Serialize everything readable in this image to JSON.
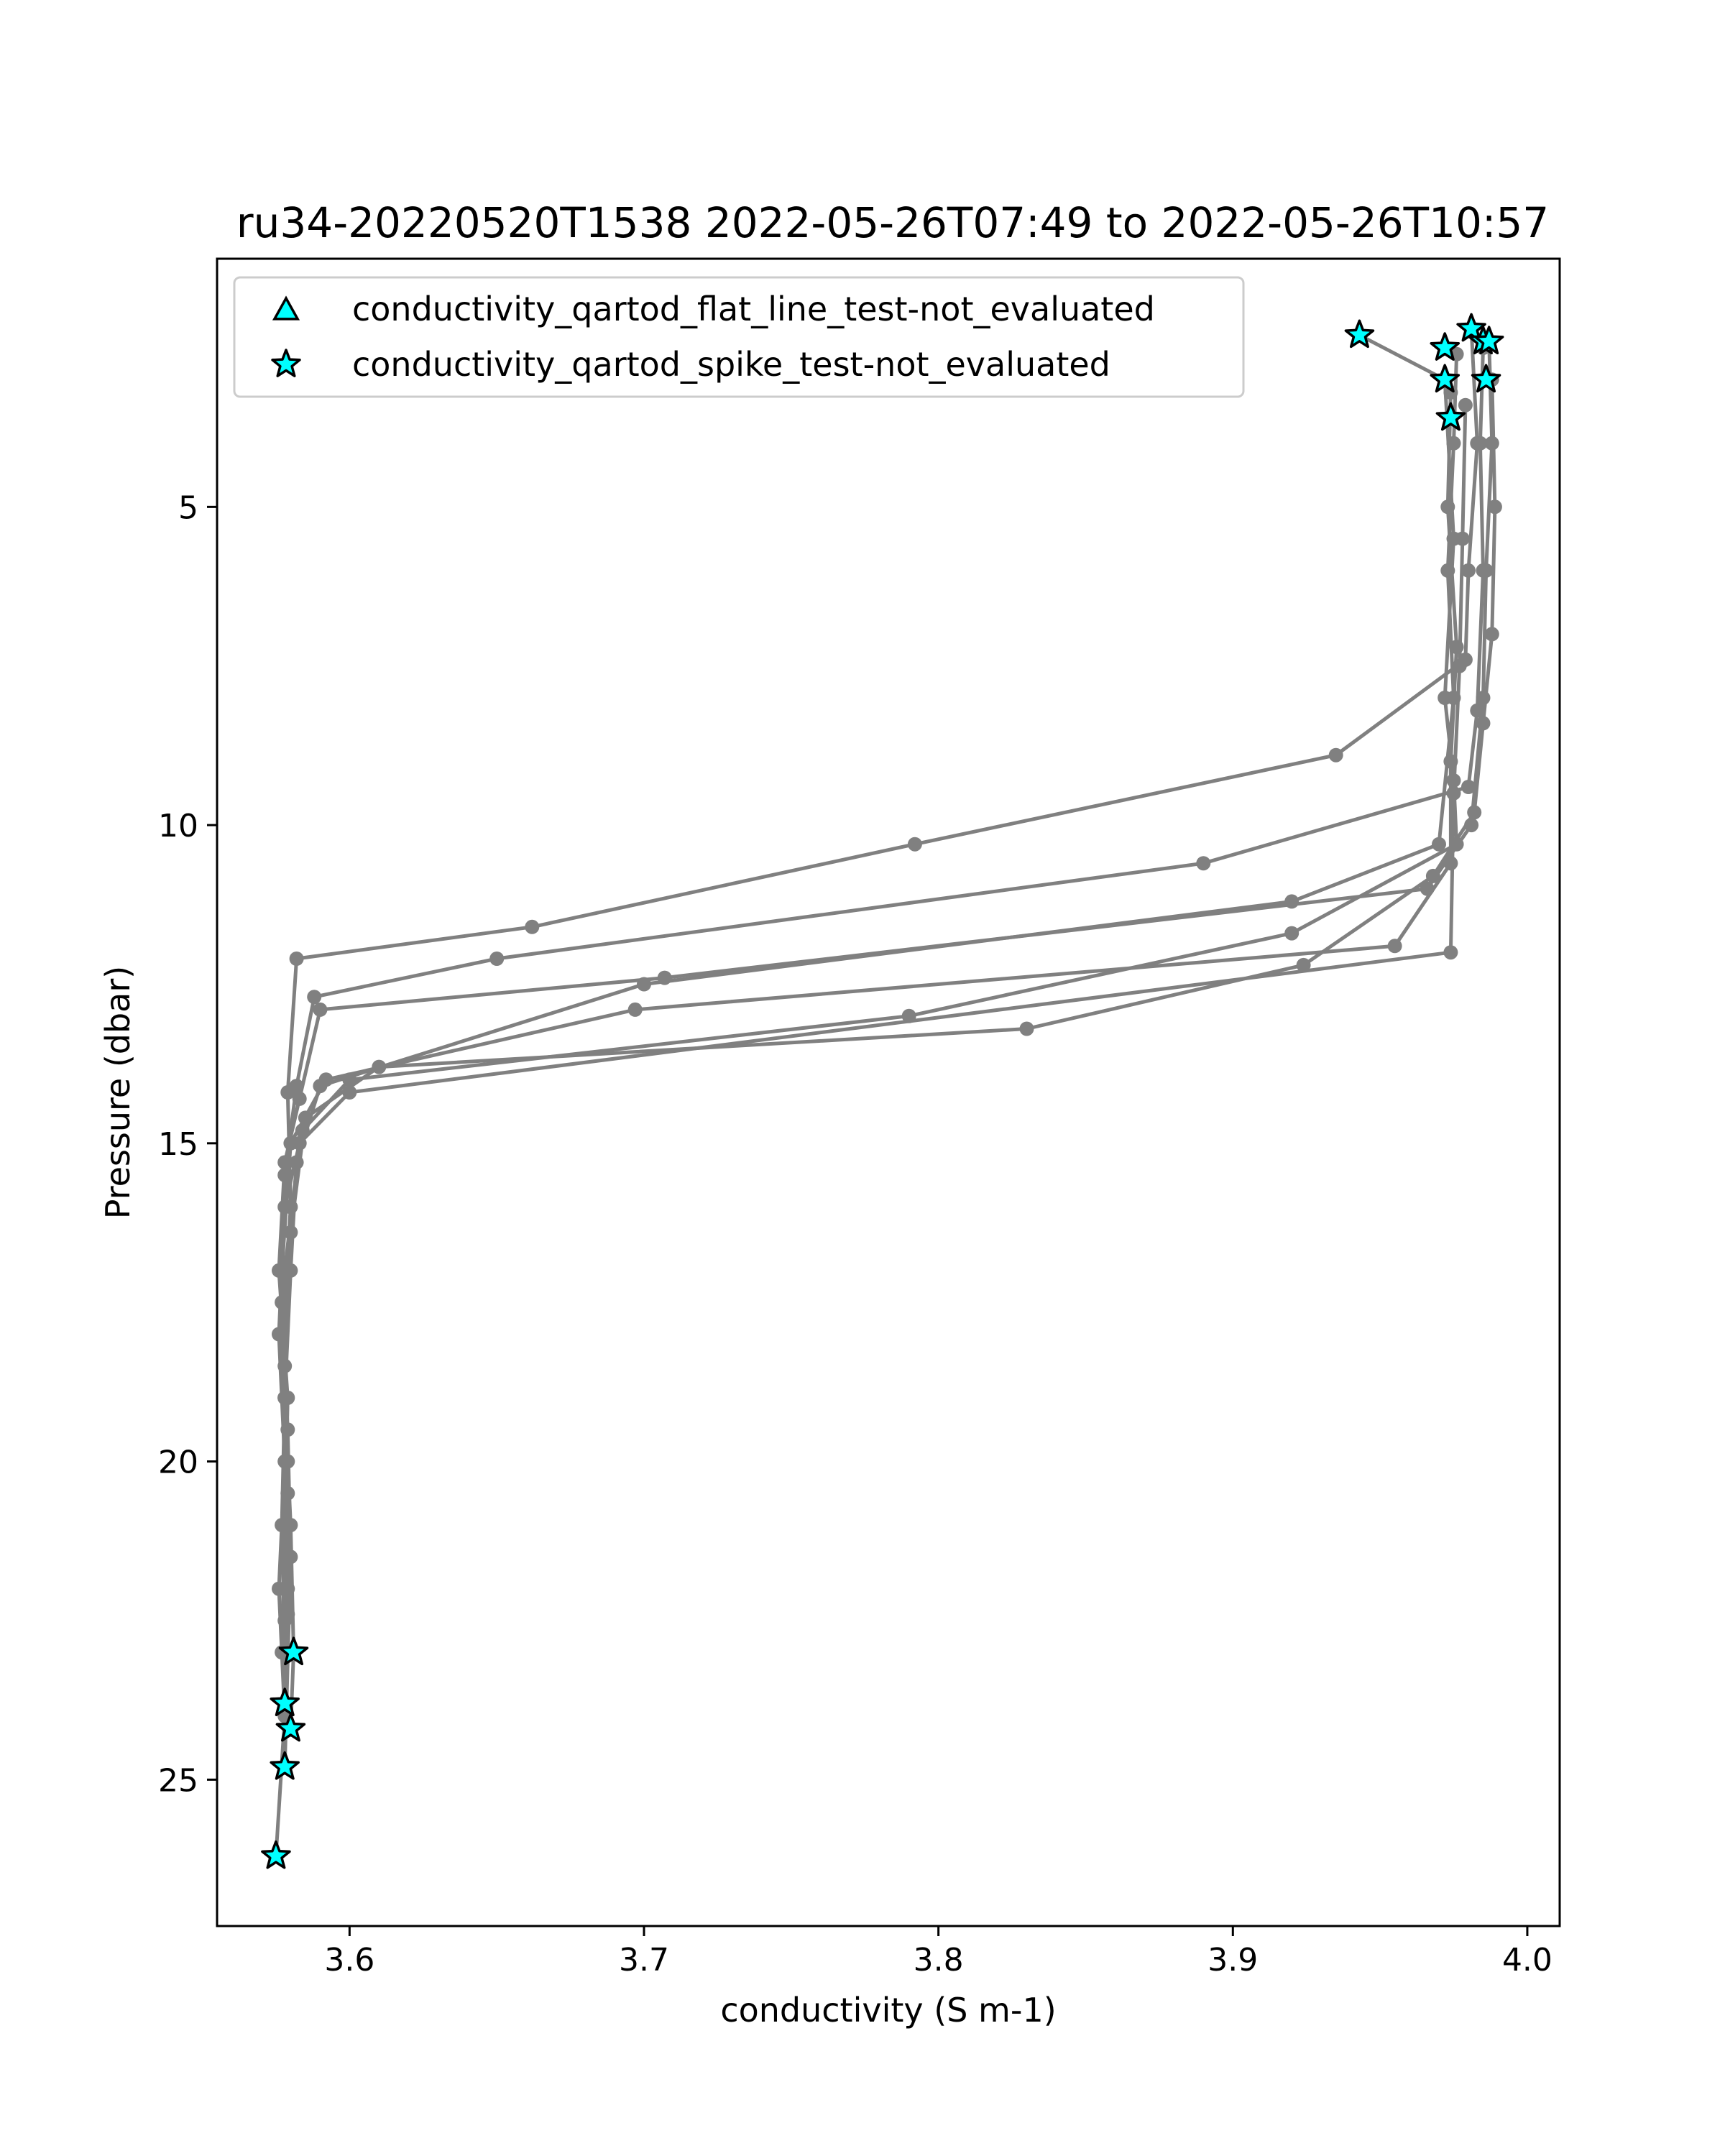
{
  "chart_data": {
    "type": "scatter",
    "title": "ru34-20220520T1538 2022-05-26T07:49 to 2022-05-26T10:57",
    "xlabel": "conductivity (S m-1)",
    "ylabel": "Pressure (dbar)",
    "xlim": [
      3.555,
      4.011
    ],
    "ylim": [
      27.3,
      1.1
    ],
    "y_inverted": true,
    "grid": false,
    "legend_position": "top-left",
    "xticks": [
      {
        "value": 3.6,
        "label": "3.6"
      },
      {
        "value": 3.7,
        "label": "3.7"
      },
      {
        "value": 3.8,
        "label": "3.8"
      },
      {
        "value": 3.9,
        "label": "3.9"
      },
      {
        "value": 4.0,
        "label": "4.0"
      }
    ],
    "yticks": [
      {
        "value": 5,
        "label": "5"
      },
      {
        "value": 10,
        "label": "10"
      },
      {
        "value": 15,
        "label": "15"
      },
      {
        "value": 20,
        "label": "20"
      },
      {
        "value": 25,
        "label": "25"
      }
    ],
    "colors": {
      "profile_line": "#808080",
      "flag_fill": "#00ffff",
      "flag_edge": "#000000"
    },
    "profiles": [
      {
        "name": "",
        "points": [
          [
            3.943,
            2.3
          ],
          [
            3.972,
            3.0
          ],
          [
            3.975,
            5.5
          ],
          [
            3.972,
            8.0
          ],
          [
            3.975,
            9.3
          ],
          [
            3.976,
            10.3
          ],
          [
            3.92,
            11.7
          ],
          [
            3.79,
            13.0
          ],
          [
            3.6,
            14.0
          ],
          [
            3.584,
            14.8
          ],
          [
            3.578,
            16.0
          ],
          [
            3.576,
            18.0
          ],
          [
            3.578,
            20.0
          ],
          [
            3.576,
            22.0
          ],
          [
            3.578,
            24.0
          ],
          [
            3.575,
            26.2
          ]
        ]
      },
      {
        "name": "",
        "points": [
          [
            3.976,
            2.6
          ],
          [
            3.975,
            4.0
          ],
          [
            3.973,
            6.0
          ],
          [
            3.975,
            8.0
          ],
          [
            3.97,
            10.3
          ],
          [
            3.92,
            11.2
          ],
          [
            3.7,
            12.5
          ],
          [
            3.59,
            14.1
          ],
          [
            3.582,
            15.3
          ],
          [
            3.58,
            17.0
          ],
          [
            3.578,
            19.0
          ],
          [
            3.58,
            21.0
          ],
          [
            3.581,
            23.0
          ],
          [
            3.58,
            24.2
          ]
        ]
      },
      {
        "name": "",
        "points": [
          [
            3.981,
            2.2
          ],
          [
            3.983,
            4.0
          ],
          [
            3.98,
            6.0
          ],
          [
            3.979,
            7.4
          ],
          [
            3.935,
            8.9
          ],
          [
            3.792,
            10.3
          ],
          [
            3.662,
            11.6
          ],
          [
            3.582,
            12.1
          ],
          [
            3.579,
            14.2
          ],
          [
            3.58,
            16.0
          ],
          [
            3.577,
            18.0
          ],
          [
            3.579,
            20.0
          ],
          [
            3.579,
            22.0
          ],
          [
            3.578,
            23.8
          ]
        ]
      },
      {
        "name": "",
        "points": [
          [
            3.985,
            2.5
          ],
          [
            3.984,
            4.0
          ],
          [
            3.985,
            6.0
          ],
          [
            3.983,
            8.2
          ],
          [
            3.98,
            9.4
          ],
          [
            3.89,
            10.6
          ],
          [
            3.65,
            12.1
          ],
          [
            3.588,
            12.7
          ],
          [
            3.582,
            14.1
          ],
          [
            3.578,
            15.5
          ],
          [
            3.577,
            17.5
          ],
          [
            3.579,
            19.5
          ],
          [
            3.58,
            21.5
          ],
          [
            3.578,
            24.8
          ]
        ]
      },
      {
        "name": "",
        "points": [
          [
            3.987,
            2.4
          ],
          [
            3.988,
            4.0
          ],
          [
            3.986,
            6.0
          ],
          [
            3.985,
            8.0
          ],
          [
            3.981,
            10.0
          ],
          [
            3.966,
            11.0
          ],
          [
            3.707,
            12.4
          ],
          [
            3.59,
            12.9
          ],
          [
            3.583,
            14.3
          ],
          [
            3.578,
            15.3
          ],
          [
            3.576,
            17.0
          ],
          [
            3.579,
            19.0
          ],
          [
            3.578,
            21.0
          ],
          [
            3.577,
            23.0
          ]
        ]
      },
      {
        "name": "",
        "points": [
          [
            3.988,
            3.0
          ],
          [
            3.989,
            5.0
          ],
          [
            3.988,
            7.0
          ],
          [
            3.985,
            8.4
          ],
          [
            3.982,
            9.8
          ],
          [
            3.968,
            10.8
          ],
          [
            3.924,
            12.2
          ],
          [
            3.83,
            13.2
          ],
          [
            3.61,
            13.8
          ],
          [
            3.585,
            14.6
          ],
          [
            3.58,
            16.4
          ],
          [
            3.578,
            18.5
          ],
          [
            3.579,
            20.5
          ],
          [
            3.579,
            22.4
          ]
        ]
      },
      {
        "name": "",
        "points": [
          [
            3.974,
            3.2
          ],
          [
            3.973,
            5.0
          ],
          [
            3.976,
            7.2
          ],
          [
            3.974,
            9.0
          ],
          [
            3.974,
            10.6
          ],
          [
            3.955,
            11.9
          ],
          [
            3.697,
            12.9
          ],
          [
            3.592,
            14.0
          ],
          [
            3.58,
            15.0
          ],
          [
            3.577,
            17.0
          ],
          [
            3.578,
            19.0
          ],
          [
            3.578,
            21.0
          ],
          [
            3.578,
            22.5
          ]
        ]
      },
      {
        "name": "",
        "points": [
          [
            3.979,
            3.4
          ],
          [
            3.978,
            5.5
          ],
          [
            3.977,
            7.5
          ],
          [
            3.975,
            9.5
          ],
          [
            3.974,
            12.0
          ],
          [
            3.6,
            14.2
          ],
          [
            3.583,
            15.0
          ],
          [
            3.578,
            17.0
          ],
          [
            3.578,
            19.0
          ],
          [
            3.577,
            21.0
          ],
          [
            3.578,
            23.0
          ]
        ]
      }
    ],
    "flags": [
      {
        "name": "conductivity_qartod_flat_line_test-not_evaluated",
        "marker": "triangle",
        "points": []
      },
      {
        "name": "conductivity_qartod_spike_test-not_evaluated",
        "marker": "star",
        "points": [
          [
            3.943,
            2.3
          ],
          [
            3.972,
            2.5
          ],
          [
            3.981,
            2.2
          ],
          [
            3.985,
            2.4
          ],
          [
            3.987,
            2.4
          ],
          [
            3.972,
            3.0
          ],
          [
            3.986,
            3.0
          ],
          [
            3.974,
            3.6
          ],
          [
            3.581,
            23.0
          ],
          [
            3.578,
            23.8
          ],
          [
            3.58,
            24.2
          ],
          [
            3.578,
            24.8
          ],
          [
            3.575,
            26.2
          ]
        ]
      }
    ]
  }
}
